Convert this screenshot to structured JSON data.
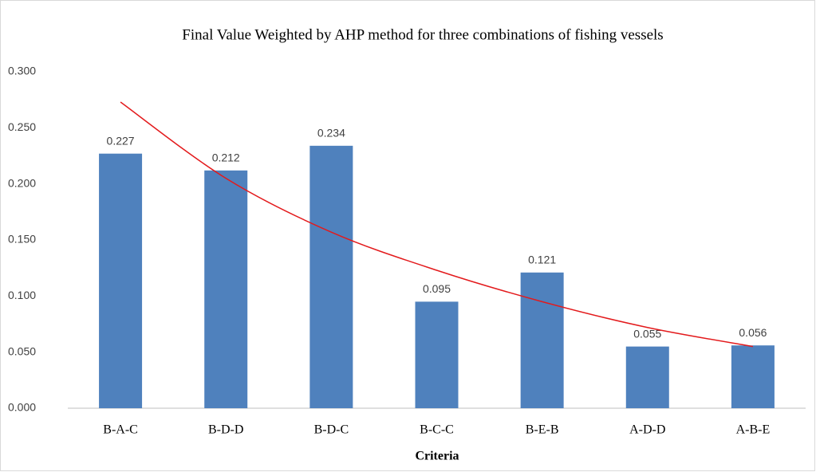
{
  "chart_data": {
    "type": "bar",
    "title": "Final  Value Weighted by AHP method for three combinations  of fishing  vessels",
    "x_label": "Criteria",
    "categories": [
      "B-A-C",
      "B-D-D",
      "B-D-C",
      "B-C-C",
      "B-E-B",
      "A-D-D",
      "A-B-E"
    ],
    "values": [
      0.227,
      0.212,
      0.234,
      0.095,
      0.121,
      0.055,
      0.056
    ],
    "color": "#4f81bd",
    "trendline": {
      "color": "#e31a1c",
      "values": [
        0.273,
        0.205,
        0.157,
        0.123,
        0.095,
        0.072,
        0.055
      ]
    },
    "ylim": [
      0,
      0.3
    ],
    "yticks": [
      {
        "value": 0,
        "label": "0.000"
      },
      {
        "value": 0.05,
        "label": "0.050"
      },
      {
        "value": 0.1,
        "label": "0.100"
      },
      {
        "value": 0.15,
        "label": "0.150"
      },
      {
        "value": 0.2,
        "label": "0.200"
      },
      {
        "value": 0.25,
        "label": "0.250"
      },
      {
        "value": 0.3,
        "label": "0.300"
      }
    ],
    "grid": false
  }
}
